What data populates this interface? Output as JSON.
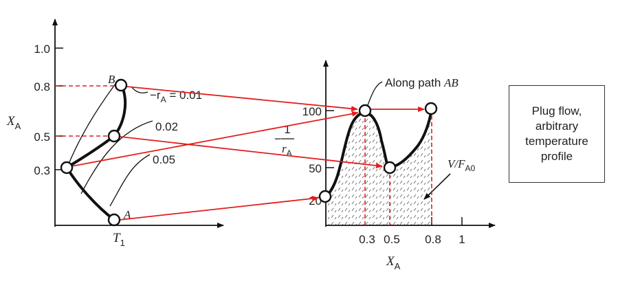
{
  "left_plot": {
    "y_axis_label": "X",
    "y_axis_label_sub": "A",
    "x_axis_label": "T",
    "x_axis_label_sub": "1",
    "y_ticks": [
      "1.0",
      "0.8",
      "0.5",
      "0.3"
    ],
    "curve_labels": {
      "r001_prefix": "−r",
      "r001_sub": "A",
      "r001_value": " = 0.01",
      "r002": "0.02",
      "r005": "0.05"
    },
    "point_labels": {
      "A": "A",
      "B": "B"
    }
  },
  "right_plot": {
    "y_ticks": [
      "100",
      "50",
      "20"
    ],
    "x_ticks": [
      "0.3",
      "0.5",
      "0.8",
      "1"
    ],
    "x_axis_label": "X",
    "x_axis_label_sub": "A",
    "y_label_minus": "−",
    "y_label_num": "1",
    "y_label_den": "r",
    "y_label_den_sub": "A",
    "path_label": "Along path ",
    "path_label_italic": "AB",
    "area_label": "V/F",
    "area_label_sub": "A0"
  },
  "box": {
    "text": "Plug flow,\narbitrary\ntemperature\nprofile"
  },
  "colors": {
    "arrow": "#e51b1b",
    "curve": "#111111"
  }
}
